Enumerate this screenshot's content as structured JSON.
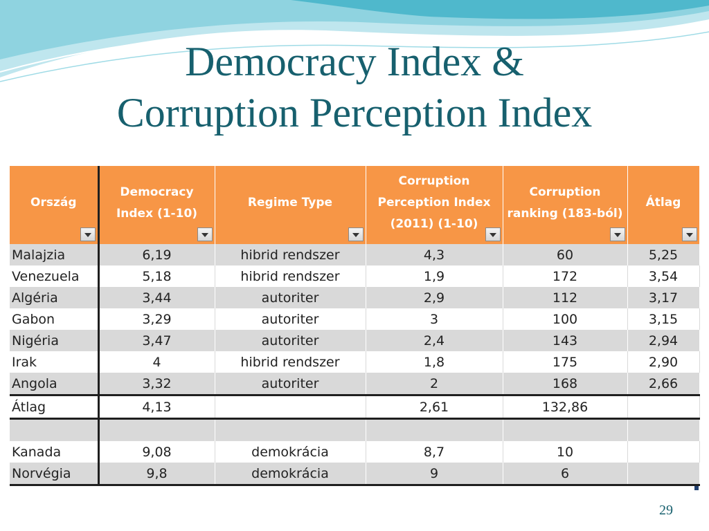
{
  "slide": {
    "title_line1": "Democracy Index &",
    "title_line2": "Corruption Perception Index",
    "page_number": "29"
  },
  "colors": {
    "title": "#17606e",
    "header_fill": "#f79646",
    "row_shade": "#d9d9d9",
    "swoosh_light": "#bfe6ee",
    "swoosh_mid": "#4fb8cc"
  },
  "table": {
    "headers": [
      "Ország",
      "Democracy Index (1-10)",
      "Regime Type",
      "Corruption Perception Index (2011) (1-10)",
      "Corruption ranking (183-ból)",
      "Átlag"
    ],
    "rows": [
      [
        "Malajzia",
        "6,19",
        "hibrid rendszer",
        "4,3",
        "60",
        "5,25"
      ],
      [
        "Venezuela",
        "5,18",
        "hibrid rendszer",
        "1,9",
        "172",
        "3,54"
      ],
      [
        "Algéria",
        "3,44",
        "autoriter",
        "2,9",
        "112",
        "3,17"
      ],
      [
        "Gabon",
        "3,29",
        "autoriter",
        "3",
        "100",
        "3,15"
      ],
      [
        "Nigéria",
        "3,47",
        "autoriter",
        "2,4",
        "143",
        "2,94"
      ],
      [
        "Irak",
        "4",
        "hibrid rendszer",
        "1,8",
        "175",
        "2,90"
      ],
      [
        "Angola",
        "3,32",
        "autoriter",
        "2",
        "168",
        "2,66"
      ]
    ],
    "average_row": [
      "Átlag",
      "4,13",
      "",
      "2,61",
      "132,86",
      ""
    ],
    "empty_row": [
      "",
      "",
      "",
      "",
      "",
      ""
    ],
    "extra_rows": [
      [
        "Kanada",
        "9,08",
        "demokrácia",
        "8,7",
        "10",
        ""
      ],
      [
        "Norvégia",
        "9,8",
        "demokrácia",
        "9",
        "6",
        ""
      ]
    ]
  },
  "icons": {
    "filter_dropdown": "dropdown-arrow-icon"
  }
}
